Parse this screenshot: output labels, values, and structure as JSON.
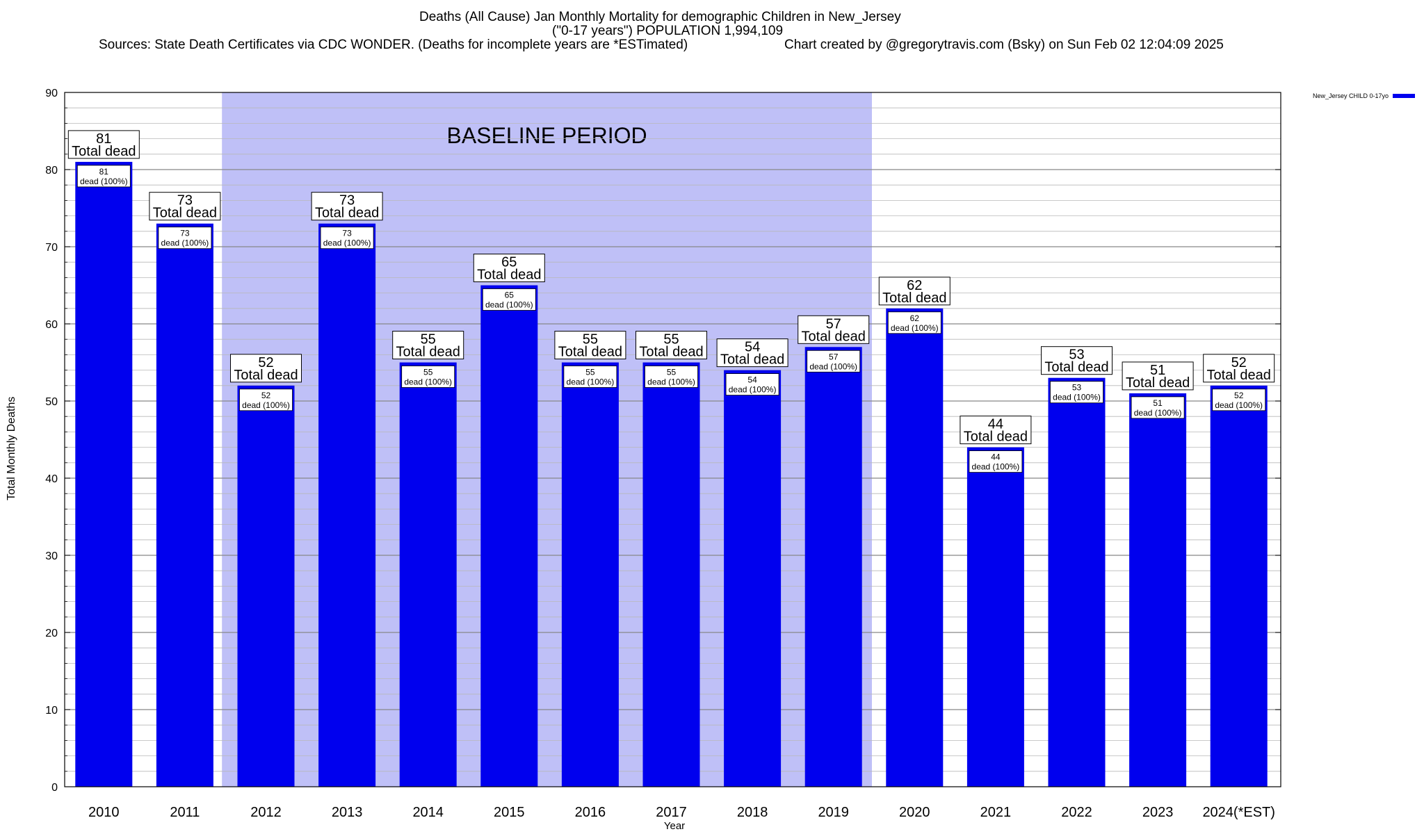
{
  "chart_data": {
    "type": "bar",
    "title_line1": "Deaths (All Cause) Jan Monthly Mortality for demographic Children in New_Jersey",
    "title_line2": "(\"0-17 years\") POPULATION 1,994,109",
    "sources": "Sources: State Death Certificates via CDC WONDER. (Deaths for incomplete years are *ESTimated)",
    "credit": "Chart created by @gregorytravis.com (Bsky) on Sun Feb 02 12:04:09 2025",
    "xlabel": "Year",
    "ylabel": "Total Monthly Deaths",
    "ylim": [
      0,
      90
    ],
    "y_ticks": [
      0,
      10,
      20,
      30,
      40,
      50,
      60,
      70,
      80,
      90
    ],
    "grid": true,
    "legend": {
      "label": "New_Jersey CHILD 0-17yo",
      "color": "#0000ee",
      "position": "top-right"
    },
    "baseline_label": "BASELINE PERIOD",
    "baseline_range": [
      "2012",
      "2019"
    ],
    "baseline_color": "#bfc0f7",
    "bar_color": "#0000ee",
    "categories": [
      "2010",
      "2011",
      "2012",
      "2013",
      "2014",
      "2015",
      "2016",
      "2017",
      "2018",
      "2019",
      "2020",
      "2021",
      "2022",
      "2023",
      "2024(*EST)"
    ],
    "values": [
      81,
      73,
      52,
      73,
      55,
      65,
      55,
      55,
      54,
      57,
      62,
      44,
      53,
      51,
      52
    ],
    "total_label_suffix": "Total dead",
    "inner_label_suffix": "dead (100%)"
  }
}
